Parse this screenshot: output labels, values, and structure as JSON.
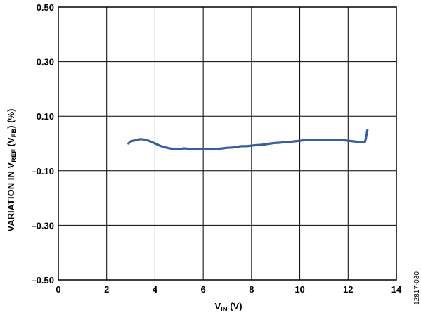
{
  "chart_data": {
    "type": "line",
    "xlabel": {
      "main": "V",
      "sub": "IN",
      "rest": " (V)"
    },
    "ylabel": {
      "p1": "VARIATION IN V",
      "s1": "REF",
      "p2": " (V",
      "s2": "FB",
      "p3": ") (%)"
    },
    "xlim": [
      0,
      14
    ],
    "ylim": [
      -0.5,
      0.5
    ],
    "x_ticks": [
      0,
      2,
      4,
      6,
      8,
      10,
      12,
      14
    ],
    "x_tick_labels": [
      "0",
      "2",
      "4",
      "6",
      "8",
      "10",
      "12",
      "14"
    ],
    "y_ticks": [
      0.5,
      0.3,
      0.1,
      -0.1,
      -0.3,
      -0.5
    ],
    "y_tick_labels": [
      "0.50",
      "0.30",
      "0.10",
      "–0.10",
      "–0.30",
      "–0.50"
    ],
    "grid": true,
    "line_color": "#3a5f9c",
    "series": [
      {
        "x": [
          2.9,
          3.0,
          3.2,
          3.4,
          3.6,
          3.8,
          4.0,
          4.2,
          4.4,
          4.6,
          4.8,
          5.0,
          5.2,
          5.4,
          5.6,
          5.8,
          6.0,
          6.2,
          6.4,
          6.6,
          6.8,
          7.0,
          7.2,
          7.4,
          7.6,
          7.8,
          8.0,
          8.2,
          8.4,
          8.6,
          8.8,
          9.0,
          9.2,
          9.4,
          9.6,
          9.8,
          10.0,
          10.2,
          10.4,
          10.6,
          10.8,
          11.0,
          11.2,
          11.4,
          11.6,
          11.8,
          12.0,
          12.2,
          12.4,
          12.6,
          12.7,
          12.75,
          12.8
        ],
        "y": [
          0.0,
          0.008,
          0.012,
          0.016,
          0.014,
          0.008,
          0.0,
          -0.008,
          -0.014,
          -0.018,
          -0.02,
          -0.022,
          -0.018,
          -0.02,
          -0.022,
          -0.02,
          -0.022,
          -0.02,
          -0.022,
          -0.02,
          -0.018,
          -0.016,
          -0.015,
          -0.012,
          -0.01,
          -0.01,
          -0.008,
          -0.006,
          -0.005,
          -0.003,
          0.0,
          0.002,
          0.003,
          0.005,
          0.006,
          0.008,
          0.01,
          0.012,
          0.012,
          0.014,
          0.014,
          0.013,
          0.012,
          0.012,
          0.013,
          0.012,
          0.01,
          0.008,
          0.006,
          0.004,
          0.006,
          0.025,
          0.05
        ]
      }
    ]
  },
  "figure_id": "12817-030"
}
